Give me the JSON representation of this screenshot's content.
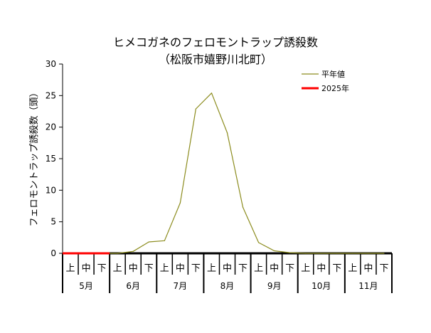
{
  "chart_data": {
    "type": "line",
    "title": "ヒメコガネのフェロモントラップ誘殺数",
    "subtitle": "（松阪市嬉野川北町）",
    "ylabel": "フェロモントラップ誘殺数（頭）",
    "ylim": [
      0,
      30
    ],
    "yticks": [
      0,
      5,
      10,
      15,
      20,
      25,
      30
    ],
    "x_sublabels": [
      "上",
      "中",
      "下",
      "上",
      "中",
      "下",
      "上",
      "中",
      "下",
      "上",
      "中",
      "下",
      "上",
      "中",
      "下",
      "上",
      "中",
      "下",
      "上",
      "中",
      "下"
    ],
    "months": [
      "5月",
      "6月",
      "7月",
      "8月",
      "9月",
      "10月",
      "11月"
    ],
    "series": [
      {
        "name": "平年値",
        "color": "#8c8c1e",
        "values": [
          0,
          0,
          0,
          0,
          0.3,
          1.8,
          2.0,
          8.0,
          22.9,
          25.4,
          19.1,
          7.3,
          1.7,
          0.4,
          0.1,
          0,
          0,
          0,
          0,
          0,
          0
        ]
      },
      {
        "name": "2025年",
        "color": "#ff0000",
        "values": [
          0,
          0,
          0,
          null,
          null,
          null,
          null,
          null,
          null,
          null,
          null,
          null,
          null,
          null,
          null,
          null,
          null,
          null,
          null,
          null,
          null
        ]
      }
    ],
    "legend_position": "top-right",
    "grid": false
  }
}
